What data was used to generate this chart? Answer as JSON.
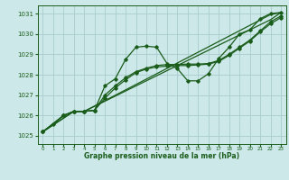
{
  "xlabel": "Graphe pression niveau de la mer (hPa)",
  "bg_color": "#cce8e8",
  "grid_color": "#aacccc",
  "line_color": "#1a5c1a",
  "xlim": [
    -0.5,
    23.5
  ],
  "ylim": [
    1024.6,
    1031.4
  ],
  "yticks": [
    1025,
    1026,
    1027,
    1028,
    1029,
    1030,
    1031
  ],
  "xticks": [
    0,
    1,
    2,
    3,
    4,
    5,
    6,
    7,
    8,
    9,
    10,
    11,
    12,
    13,
    14,
    15,
    16,
    17,
    18,
    19,
    20,
    21,
    22,
    23
  ],
  "line1_x": [
    0,
    1,
    2,
    3,
    4,
    5,
    6,
    7,
    8,
    9,
    10,
    11,
    12,
    13,
    14,
    15,
    16,
    17,
    18,
    19,
    20,
    21,
    22,
    23
  ],
  "line1_y": [
    1025.2,
    1025.55,
    1026.0,
    1026.2,
    1026.2,
    1026.25,
    1027.45,
    1027.8,
    1028.75,
    1029.35,
    1029.4,
    1029.35,
    1028.55,
    1028.3,
    1027.7,
    1027.7,
    1028.05,
    1028.8,
    1029.35,
    1030.0,
    1030.2,
    1030.75,
    1031.0,
    1031.05
  ],
  "line2_x": [
    0,
    2,
    3,
    4,
    5,
    6,
    7,
    8,
    9,
    10,
    11,
    12,
    13,
    14,
    15,
    16,
    17,
    18,
    19,
    20,
    21,
    22,
    23
  ],
  "line2_y": [
    1025.2,
    1026.0,
    1026.2,
    1026.2,
    1026.25,
    1026.85,
    1027.35,
    1027.75,
    1028.1,
    1028.28,
    1028.38,
    1028.42,
    1028.45,
    1028.45,
    1028.48,
    1028.52,
    1028.65,
    1028.95,
    1029.3,
    1029.65,
    1030.1,
    1030.5,
    1030.8
  ],
  "line3_x": [
    0,
    2,
    3,
    4,
    5,
    6,
    7,
    8,
    9,
    10,
    11,
    12,
    13,
    14,
    15,
    16,
    17,
    18,
    19,
    20,
    21,
    22,
    23
  ],
  "line3_y": [
    1025.2,
    1026.0,
    1026.2,
    1026.2,
    1026.25,
    1027.0,
    1027.45,
    1027.85,
    1028.15,
    1028.32,
    1028.45,
    1028.5,
    1028.5,
    1028.52,
    1028.52,
    1028.55,
    1028.7,
    1029.0,
    1029.35,
    1029.7,
    1030.15,
    1030.6,
    1030.88
  ],
  "line4_x": [
    0,
    3,
    4,
    22,
    23
  ],
  "line4_y": [
    1025.2,
    1026.2,
    1026.2,
    1030.95,
    1031.05
  ],
  "line5_x": [
    0,
    3,
    4,
    22,
    23
  ],
  "line5_y": [
    1025.2,
    1026.2,
    1026.2,
    1030.7,
    1031.05
  ]
}
